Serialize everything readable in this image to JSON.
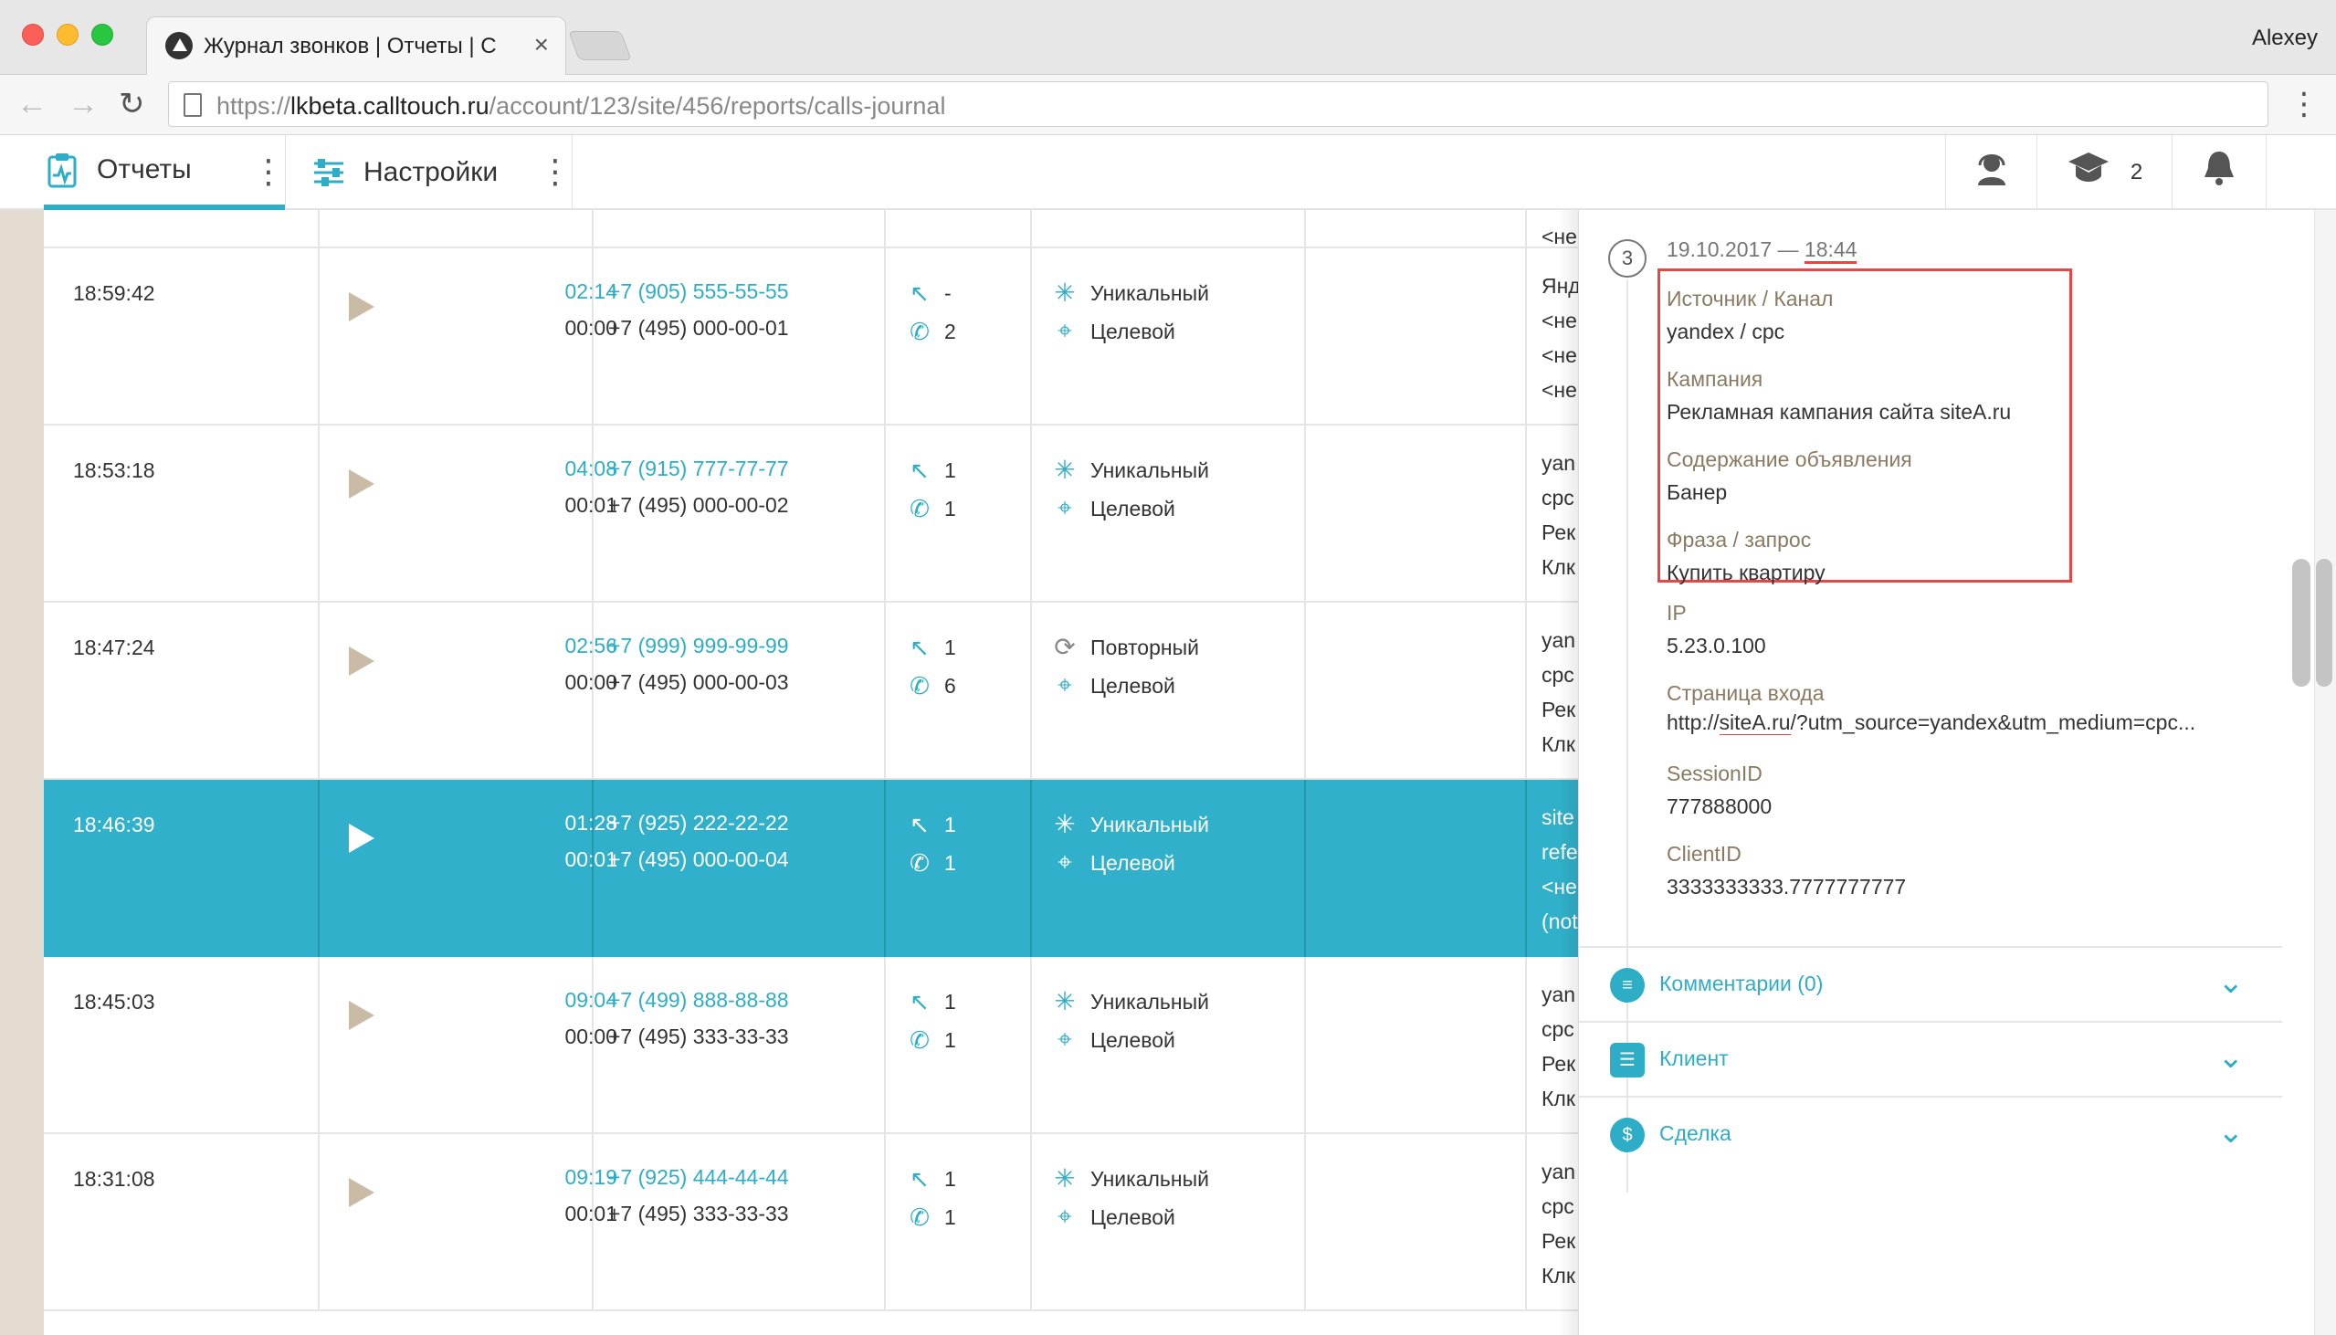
{
  "browser": {
    "tab_title": "Журнал звонков | Отчеты | Ca",
    "user": "Alexey",
    "url_prefix": "https://",
    "url_host": "lkbeta.calltouch.ru",
    "url_path": "/account/123/site/456/reports/calls-journal"
  },
  "header": {
    "reports_label": "Отчеты",
    "settings_label": "Настройки",
    "academy_count": "2"
  },
  "rows": [
    {
      "time": "18:59:42",
      "dur1": "02:14",
      "dur2": "00:00",
      "phone1": "+7 (905) 555-55-55",
      "phone2": "+7 (495) 000-00-01",
      "n1": "-",
      "n2": "2",
      "tag1": "Уникальный",
      "tag2": "Целевой",
      "src": [
        "Янд",
        "<не",
        "<не",
        "<не"
      ]
    },
    {
      "time": "18:53:18",
      "dur1": "04:08",
      "dur2": "00:01",
      "phone1": "+7 (915) 777-77-77",
      "phone2": "+7 (495) 000-00-02",
      "n1": "1",
      "n2": "1",
      "tag1": "Уникальный",
      "tag2": "Целевой",
      "src": [
        "yan",
        "cpc",
        "Рек",
        "Клк"
      ]
    },
    {
      "time": "18:47:24",
      "dur1": "02:56",
      "dur2": "00:00",
      "phone1": "+7 (999) 999-99-99",
      "phone2": "+7 (495) 000-00-03",
      "n1": "1",
      "n2": "6",
      "tag1": "Повторный",
      "tag2": "Целевой",
      "src": [
        "yan",
        "cpc",
        "Рек",
        "Клк"
      ]
    },
    {
      "time": "18:46:39",
      "dur1": "01:28",
      "dur2": "00:01",
      "phone1": "+7 (925) 222-22-22",
      "phone2": "+7 (495) 000-00-04",
      "n1": "1",
      "n2": "1",
      "tag1": "Уникальный",
      "tag2": "Целевой",
      "src": [
        "site",
        "refe",
        "<не",
        "(not"
      ]
    },
    {
      "time": "18:45:03",
      "dur1": "09:04",
      "dur2": "00:00",
      "phone1": "+7 (499) 888-88-88",
      "phone2": "+7 (495) 333-33-33",
      "n1": "1",
      "n2": "1",
      "tag1": "Уникальный",
      "tag2": "Целевой",
      "src": [
        "yan",
        "cpc",
        "Рек",
        "Клк"
      ]
    },
    {
      "time": "18:31:08",
      "dur1": "09:19",
      "dur2": "00:01",
      "phone1": "+7 (925) 444-44-44",
      "phone2": "+7 (495) 333-33-33",
      "n1": "1",
      "n2": "1",
      "tag1": "Уникальный",
      "tag2": "Целевой",
      "src": [
        "yan",
        "cpc",
        "Рек",
        "Клк"
      ]
    }
  ],
  "top_partial_src": "<не",
  "panel": {
    "step": "3",
    "date": "19.10.2017 —",
    "time": "18:44",
    "fields": [
      {
        "label": "Источник / Канал",
        "value": "yandex / cpc"
      },
      {
        "label": "Кампания",
        "value": "Рекламная кампания сайта siteA.ru"
      },
      {
        "label": "Содержание объявления",
        "value": "Банер"
      },
      {
        "label": "Фраза / запрос",
        "value": "Купить квартиру"
      },
      {
        "label": "IP",
        "value": "5.23.0.100"
      }
    ],
    "entry_label": "Страница входа",
    "entry_prefix": "http://",
    "entry_site": "siteA.ru",
    "entry_rest": "/?utm_source=yandex&utm_medium=cpc...",
    "session_label": "SessionID",
    "session_value": "777888000",
    "client_label": "ClientID",
    "client_value": "3333333333.7777777777",
    "comments": "Комментарии (0)",
    "client_section": "Клиент",
    "deal_section": "Сделка"
  }
}
